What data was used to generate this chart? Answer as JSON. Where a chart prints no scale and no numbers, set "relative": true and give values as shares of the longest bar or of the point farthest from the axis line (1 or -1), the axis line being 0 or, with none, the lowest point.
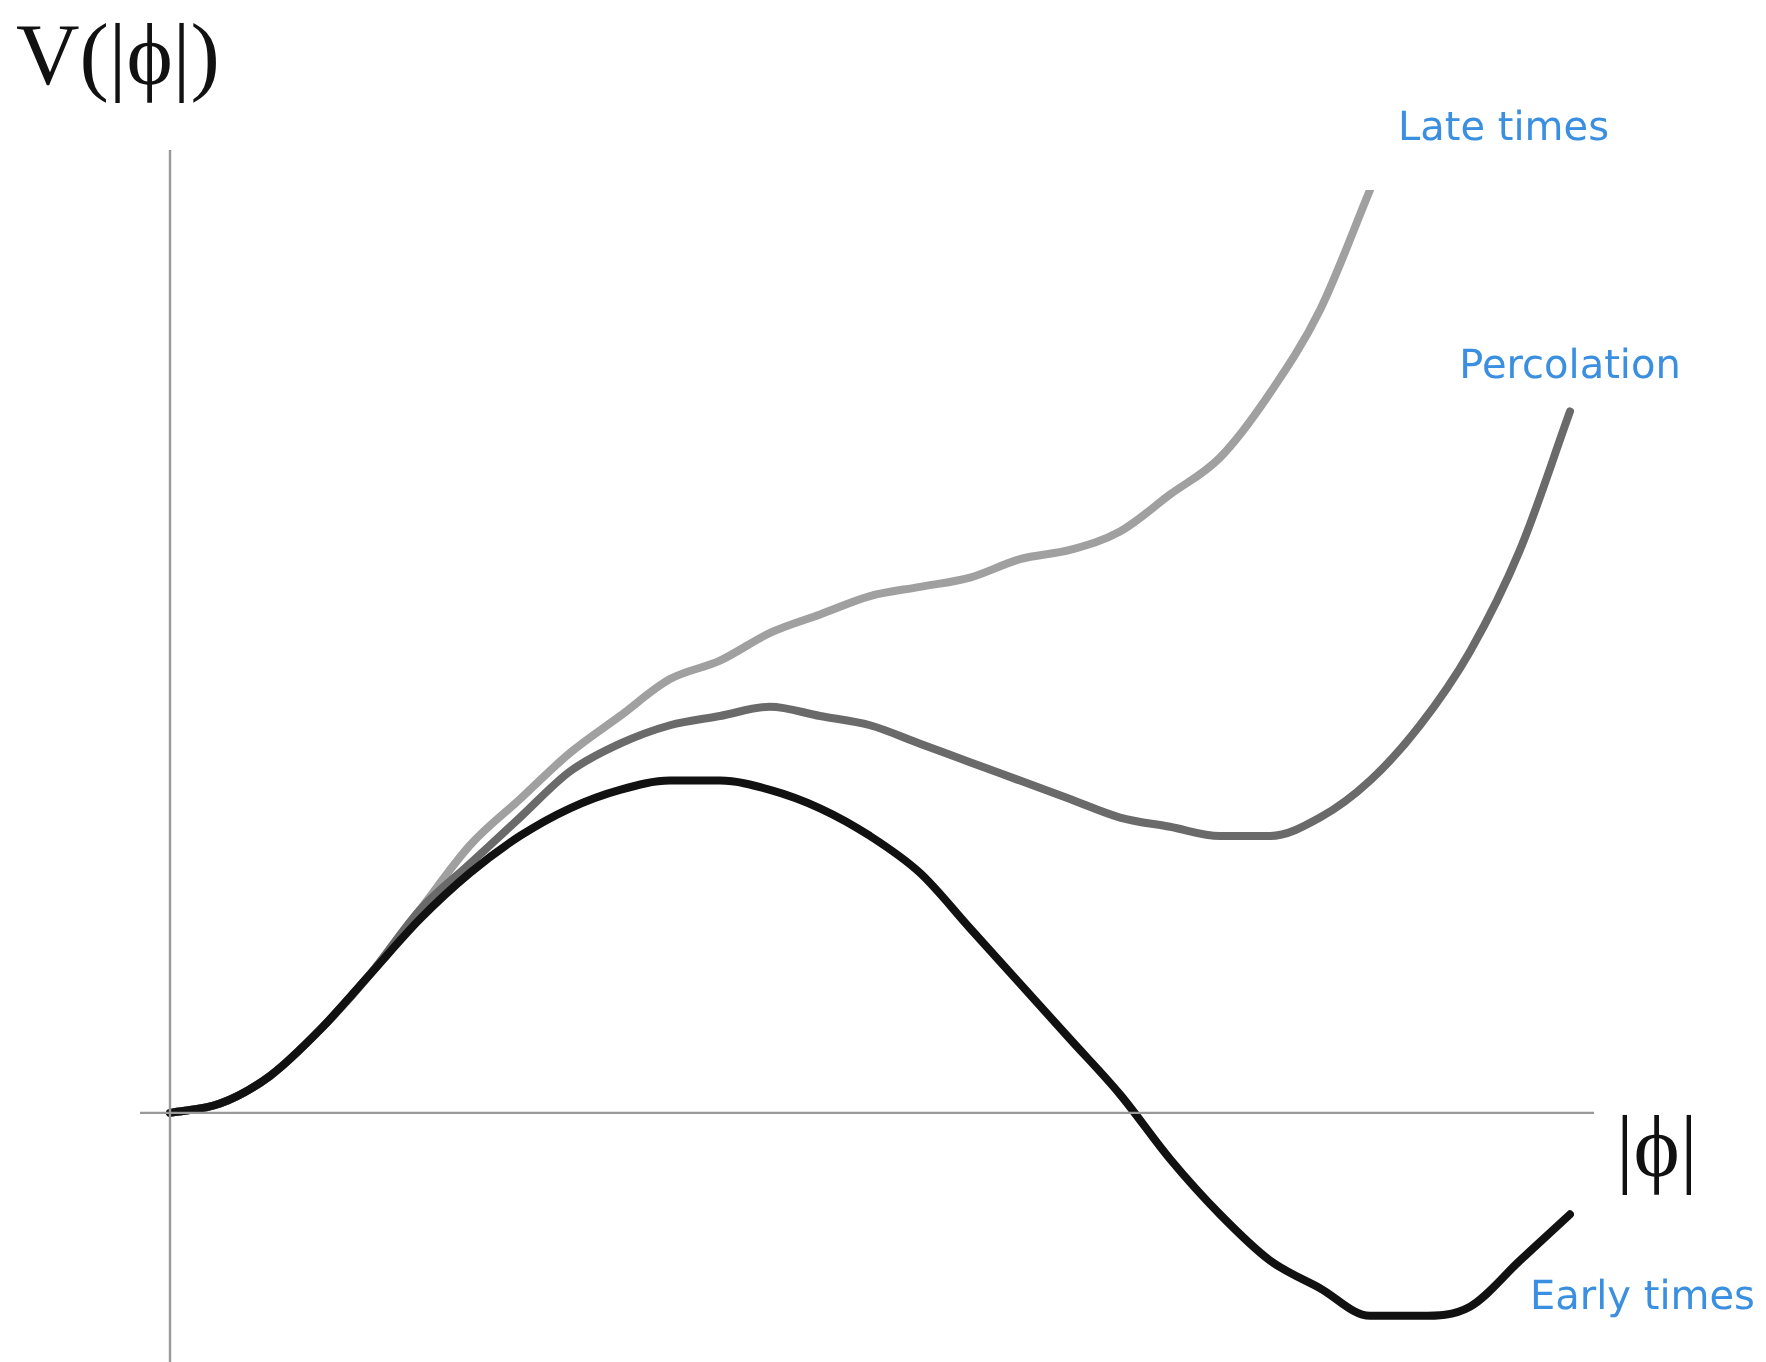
{
  "chart_data": {
    "type": "line",
    "relative": true,
    "xlabel": "|ϕ|",
    "ylabel": "V(|ϕ|)",
    "categories": [
      null,
      null,
      null,
      null,
      null,
      null,
      null,
      null,
      null,
      null,
      null,
      null,
      null,
      null,
      null,
      null,
      null,
      null,
      null,
      null,
      null,
      null,
      null,
      null,
      null,
      null,
      null,
      null,
      null
    ],
    "series": [
      {
        "name": "Late times",
        "color": "#a0a0a0",
        "values": [
          0,
          0.01,
          0.04,
          0.09,
          0.15,
          0.22,
          0.29,
          0.34,
          0.39,
          0.43,
          0.47,
          0.49,
          0.52,
          0.54,
          0.56,
          0.57,
          0.58,
          0.6,
          0.61,
          0.63,
          0.67,
          0.71,
          0.78,
          0.87,
          1,
          null,
          null,
          null,
          null
        ]
      },
      {
        "name": "Percolation",
        "color": "#6a6a6a",
        "values": [
          0,
          0.01,
          0.04,
          0.09,
          0.15,
          0.22,
          0.27,
          0.32,
          0.37,
          0.4,
          0.42,
          0.43,
          0.44,
          0.43,
          0.42,
          0.4,
          0.38,
          0.36,
          0.34,
          0.32,
          0.31,
          0.3,
          0.3,
          0.32,
          0.36,
          0.42,
          0.5,
          0.61,
          0.76
        ]
      },
      {
        "name": "Early times",
        "color": "#111111",
        "values": [
          0,
          0.01,
          0.04,
          0.09,
          0.15,
          0.21,
          0.26,
          0.3,
          0.33,
          0.35,
          0.36,
          0.36,
          0.35,
          0.33,
          0.3,
          0.26,
          0.2,
          0.14,
          0.08,
          0.02,
          -0.05,
          -0.11,
          -0.16,
          -0.19,
          -0.22,
          -0.22,
          -0.21,
          -0.16,
          -0.11
        ]
      }
    ],
    "marker": "none",
    "line_style": "solid"
  }
}
